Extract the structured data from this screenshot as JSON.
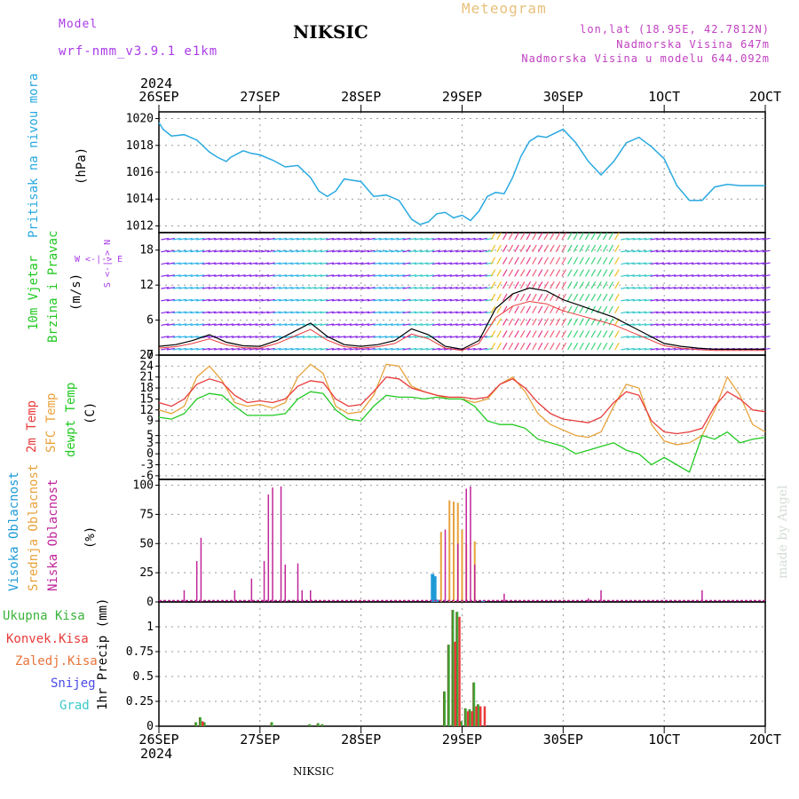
{
  "header": {
    "model_label": "Model",
    "model_name": "wrf-nmm_v3.9.1  e1km",
    "station_title": "NIKSIC",
    "meteogram_label": "Meteogram",
    "lonlat": "lon,lat (18.95E, 42.7812N)",
    "altitude": "Nadmorska Visina 647m",
    "model_altitude": "Nadmorska Visina u modelu 644.092m",
    "footer_station": "NIKSIC",
    "credit": "made by Angel"
  },
  "time_axis": {
    "year_top": "2024",
    "year_bottom": "2024",
    "labels": [
      "26SEP",
      "27SEP",
      "28SEP",
      "29SEP",
      "30SEP",
      "1OCT",
      "2OCT"
    ]
  },
  "colors": {
    "pressure": "#29a9e0",
    "temp_2m": "#e83b3b",
    "sfc_temp": "#e8a23b",
    "dewpt": "#22c922",
    "cloud_high": "#1e9bd7",
    "cloud_mid": "#e8a23b",
    "cloud_low": "#c0259a",
    "precip_total": "#3bb33b",
    "precip_conv": "#e83b3b",
    "precip_frozen": "#e8743b",
    "snow": "#4a4ae8",
    "hail": "#3bc9c9",
    "wind_label": "#22c922",
    "wind_dir": "#a93be8"
  },
  "panels": {
    "pressure": {
      "label_main": "Pritisak na nivou mora",
      "unit": "(hPa)",
      "ticks": [
        "1020",
        "1018",
        "1016",
        "1014",
        "1012"
      ]
    },
    "wind": {
      "label_1": "10m Vjetar",
      "label_2": "Brzina i Pravac",
      "unit": "(m/s)",
      "ticks": [
        "18",
        "12",
        "6",
        "0"
      ],
      "dir_legend": "W <-|-> E",
      "dir_legend_ns": "S <-|-> N"
    },
    "temperature": {
      "label_2m": "2m Temp",
      "label_sfc": "SFC Temp",
      "label_dew": "dewpt Temp",
      "unit": "(C)",
      "ticks": [
        "27",
        "24",
        "21",
        "18",
        "15",
        "12",
        "9",
        "5",
        "3",
        "0",
        "-3",
        "-6"
      ]
    },
    "clouds": {
      "label_high": "Visoka Oblacnost",
      "label_mid": "Srednja Oblacnost",
      "label_low": "Niska Oblacnost",
      "unit": "(%)",
      "ticks": [
        "100",
        "75",
        "50",
        "25",
        "0"
      ]
    },
    "precip": {
      "label_total": "Ukupna Kisa",
      "label_conv": "Konvek.Kisa",
      "label_frozen": "Zaledj.Kisa",
      "label_snow": "Snijeg",
      "label_hail": "Grad",
      "unit": "1hr Precip (mm)",
      "ticks": [
        "1",
        "0.75",
        "0.5",
        "0.25",
        "0"
      ]
    }
  },
  "chart_data": [
    {
      "type": "line",
      "panel": "pressure",
      "ylabel": "(hPa)",
      "ylim": [
        1011.5,
        1020.5
      ],
      "xlim_hours": [
        0,
        144
      ],
      "series": [
        {
          "name": "Pritisak na nivou mora",
          "x": [
            0,
            1,
            3,
            6,
            9,
            12,
            14,
            16,
            17,
            20,
            22,
            24,
            27,
            30,
            33,
            36,
            38,
            40,
            42,
            44,
            46,
            48,
            51,
            54,
            57,
            60,
            62,
            64,
            66,
            68,
            70,
            72,
            74,
            76,
            78,
            80,
            82,
            84,
            86,
            88,
            90,
            92,
            94,
            96,
            99,
            102,
            105,
            108,
            111,
            114,
            117,
            120,
            123,
            126,
            129,
            132,
            135,
            138,
            141,
            144
          ],
          "y": [
            1019.7,
            1019.2,
            1018.7,
            1018.8,
            1018.4,
            1017.5,
            1017.1,
            1016.8,
            1017.1,
            1017.6,
            1017.4,
            1017.3,
            1016.9,
            1016.4,
            1016.5,
            1015.6,
            1014.6,
            1014.2,
            1014.6,
            1015.5,
            1015.4,
            1015.3,
            1014.2,
            1014.3,
            1013.9,
            1012.5,
            1012.1,
            1012.3,
            1012.9,
            1013.0,
            1012.6,
            1012.8,
            1012.4,
            1013.1,
            1014.2,
            1014.5,
            1014.4,
            1015.6,
            1017.2,
            1018.3,
            1018.7,
            1018.6,
            1018.9,
            1019.2,
            1018.2,
            1016.8,
            1015.8,
            1016.8,
            1018.2,
            1018.6,
            1017.9,
            1017.0,
            1015.0,
            1013.9,
            1013.9,
            1014.9,
            1015.1,
            1015.0,
            1015.0,
            1015.0
          ]
        }
      ]
    },
    {
      "type": "line",
      "panel": "wind",
      "ylabel": "(m/s)",
      "ylim": [
        0,
        21
      ],
      "series": [
        {
          "name": "10m Vjetar",
          "x": [
            0,
            4,
            8,
            12,
            16,
            20,
            24,
            28,
            32,
            36,
            40,
            44,
            48,
            52,
            56,
            60,
            64,
            68,
            72,
            76,
            80,
            84,
            88,
            92,
            96,
            100,
            104,
            108,
            112,
            116,
            120,
            124,
            128,
            132,
            136,
            140,
            144
          ],
          "y": [
            1.5,
            1.8,
            2.5,
            3.5,
            2.2,
            1.6,
            1.5,
            2.5,
            4.0,
            5.5,
            3.2,
            1.8,
            1.5,
            1.8,
            2.5,
            4.5,
            3.5,
            1.5,
            1.0,
            2.5,
            8.0,
            10.5,
            11.5,
            11.0,
            9.5,
            8.5,
            7.5,
            6.5,
            5.0,
            3.5,
            2.0,
            1.5,
            1.2,
            1.0,
            1.0,
            1.0,
            1.0
          ]
        }
      ]
    },
    {
      "type": "line",
      "panel": "temperature",
      "ylabel": "(C)",
      "ylim": [
        -7,
        27
      ],
      "series": [
        {
          "name": "2m Temp",
          "x": [
            0,
            3,
            6,
            9,
            12,
            15,
            18,
            21,
            24,
            27,
            30,
            33,
            36,
            39,
            42,
            45,
            48,
            51,
            54,
            57,
            60,
            63,
            66,
            69,
            72,
            75,
            78,
            81,
            84,
            87,
            90,
            93,
            96,
            99,
            102,
            105,
            108,
            111,
            114,
            117,
            120,
            123,
            126,
            129,
            132,
            135,
            138,
            141,
            144
          ],
          "y": [
            14,
            13,
            15,
            19,
            20.5,
            19.5,
            16,
            14,
            14.5,
            14,
            15,
            18.5,
            20,
            19.5,
            15,
            13,
            13.5,
            17,
            21,
            20.5,
            18,
            17,
            16,
            15.5,
            15.5,
            15,
            15.5,
            19,
            20.5,
            18,
            14,
            11,
            9.5,
            9,
            8.5,
            10,
            14,
            17,
            16,
            9,
            6,
            5.5,
            6,
            7,
            13,
            17,
            15,
            12,
            11.5
          ]
        },
        {
          "name": "SFC Temp",
          "x": [
            0,
            3,
            6,
            9,
            12,
            15,
            18,
            21,
            24,
            27,
            30,
            33,
            36,
            39,
            42,
            45,
            48,
            51,
            54,
            57,
            60,
            63,
            66,
            69,
            72,
            75,
            78,
            81,
            84,
            87,
            90,
            93,
            96,
            99,
            102,
            105,
            108,
            111,
            114,
            117,
            120,
            123,
            126,
            129,
            132,
            135,
            138,
            141,
            144
          ],
          "y": [
            12,
            11,
            13,
            21,
            24,
            20,
            14,
            13,
            13.5,
            12.5,
            14,
            21,
            24.5,
            22,
            13,
            11,
            11.5,
            16,
            24.5,
            24,
            18.5,
            17,
            16,
            15,
            15,
            14,
            15,
            19,
            21,
            17,
            11,
            8,
            6.5,
            5,
            4.5,
            6,
            13,
            19,
            18,
            8,
            3.5,
            2.5,
            3,
            5,
            12,
            21,
            16,
            8,
            6
          ]
        },
        {
          "name": "dewpt Temp",
          "x": [
            0,
            3,
            6,
            9,
            12,
            15,
            18,
            21,
            24,
            27,
            30,
            33,
            36,
            39,
            42,
            45,
            48,
            51,
            54,
            57,
            60,
            63,
            66,
            69,
            72,
            75,
            78,
            81,
            84,
            87,
            90,
            93,
            96,
            99,
            102,
            105,
            108,
            111,
            114,
            117,
            120,
            123,
            126,
            129,
            132,
            135,
            138,
            141,
            144
          ],
          "y": [
            10,
            9.5,
            11,
            15,
            16.5,
            16,
            13,
            10.5,
            10.5,
            10.5,
            11,
            15,
            17,
            16.5,
            12,
            9.5,
            9,
            13,
            16,
            15.5,
            15.5,
            15,
            15.5,
            15,
            15,
            13,
            9,
            8,
            8,
            7,
            4,
            3,
            2,
            0,
            1,
            2,
            3,
            1,
            0,
            -3,
            -1,
            -3,
            -5,
            5,
            4,
            6,
            3,
            4,
            4.5
          ]
        }
      ]
    },
    {
      "type": "bar",
      "panel": "clouds",
      "ylabel": "(%)",
      "ylim": [
        0,
        105
      ],
      "series": [
        {
          "name": "Visoka Oblacnost",
          "x": [
            65,
            65.5,
            66,
            77
          ],
          "y": [
            24,
            22,
            2,
            1
          ]
        },
        {
          "name": "Srednja Oblacnost",
          "x": [
            67,
            69,
            70,
            71,
            72,
            73,
            75
          ],
          "y": [
            60,
            87,
            86,
            85,
            62,
            50,
            52
          ]
        },
        {
          "name": "Niska Oblacnost",
          "x": [
            6,
            9,
            10,
            18,
            22,
            25,
            26,
            27,
            29,
            30,
            33,
            34,
            36,
            68,
            71,
            73,
            74,
            75,
            82,
            102,
            105,
            129
          ],
          "y": [
            10,
            35,
            55,
            10,
            20,
            35,
            92,
            98,
            99,
            32,
            33,
            10,
            10,
            62,
            50,
            97,
            99,
            32,
            7,
            3,
            10,
            10
          ]
        }
      ]
    },
    {
      "type": "bar",
      "panel": "precip",
      "ylabel": "1hr Precip (mm)",
      "ylim": [
        0,
        1.25
      ],
      "series": [
        {
          "name": "Ukupna Kisa",
          "x": [
            9,
            10,
            11,
            27,
            36,
            38,
            39,
            68,
            69,
            70,
            71,
            72,
            73,
            74,
            75,
            76
          ],
          "y": [
            0.04,
            0.09,
            0.04,
            0.04,
            0.02,
            0.03,
            0.02,
            0.35,
            0.82,
            1.17,
            1.15,
            0.05,
            0.18,
            0.17,
            0.44,
            0.22
          ]
        },
        {
          "name": "Konvek.Kisa",
          "x": [
            10,
            70,
            71,
            73,
            74,
            75,
            76,
            77
          ],
          "y": [
            0.05,
            0.85,
            1.1,
            0.15,
            0.15,
            0.2,
            0.2,
            0.2
          ]
        },
        {
          "name": "Zaledj.Kisa",
          "x": [],
          "y": []
        },
        {
          "name": "Snijeg",
          "x": [],
          "y": []
        },
        {
          "name": "Grad",
          "x": [],
          "y": []
        }
      ]
    }
  ]
}
